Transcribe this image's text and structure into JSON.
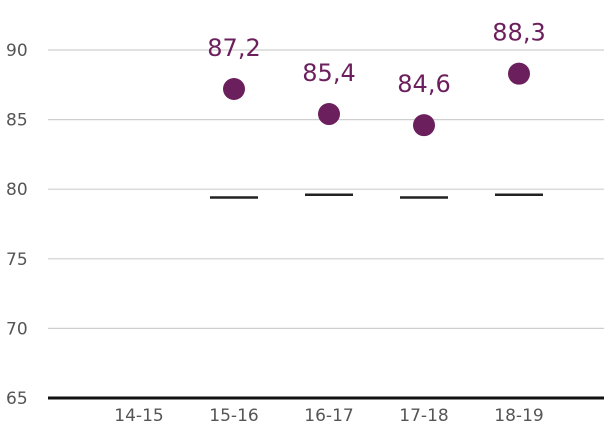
{
  "chart_data": {
    "type": "scatter",
    "categories": [
      "14-15",
      "15-16",
      "16-17",
      "17-18",
      "18-19"
    ],
    "series": [
      {
        "values": [
          null,
          87.2,
          85.4,
          84.6,
          88.3
        ],
        "labels": [
          "",
          "87,2",
          "85,4",
          "84,6",
          "88,3"
        ]
      },
      {
        "values": [
          null,
          79.4,
          79.6,
          79.4,
          79.6
        ]
      }
    ],
    "y_ticks": [
      65,
      70,
      75,
      80,
      85,
      90
    ],
    "ylim": [
      65,
      90
    ],
    "grid": true,
    "colors": {
      "points": "#6b1f5c",
      "reference": "#222222",
      "grid": "#cfcfcf"
    }
  }
}
